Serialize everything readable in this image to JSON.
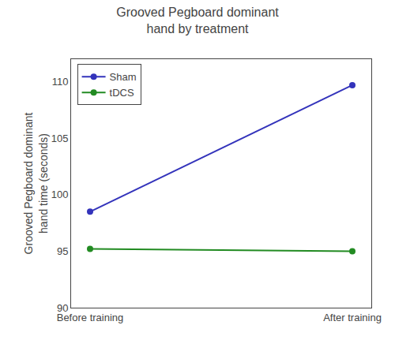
{
  "chart_data": {
    "type": "line",
    "title": "Grooved Pegboard dominant\nhand by treatment",
    "ylabel": "Grooved Pegboard dominant\nhand time (seconds)",
    "categories": [
      "Before training",
      "After training"
    ],
    "series": [
      {
        "name": "Sham",
        "color": "#3333bb",
        "values": [
          98.5,
          109.7
        ]
      },
      {
        "name": "tDCS",
        "color": "#228B22",
        "values": [
          95.2,
          95.0
        ]
      }
    ],
    "ylim": [
      90,
      112
    ],
    "yticks": [
      90,
      95,
      100,
      105,
      110
    ],
    "grid": false,
    "legend": "upper left",
    "marker": "circle"
  }
}
